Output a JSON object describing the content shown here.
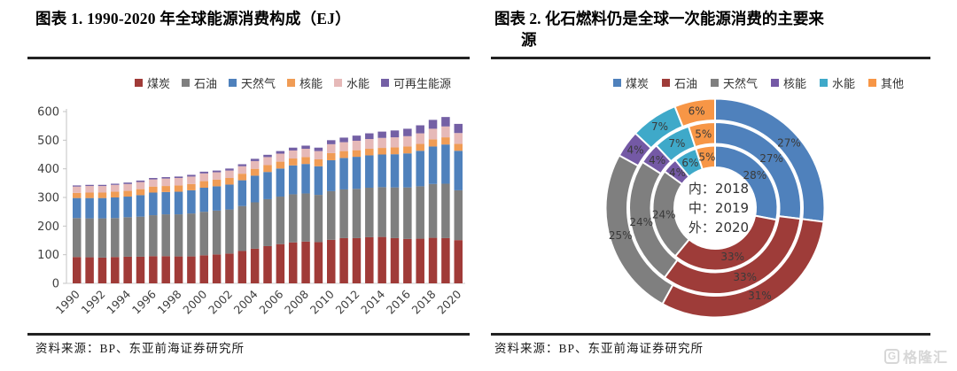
{
  "figure1": {
    "title": "图表 1.  1990-2020 年全球能源消费构成（EJ）",
    "source_label": "资料来源：BP、东亚前海证券研究所"
  },
  "figure2": {
    "title": "图表 2.  化石燃料仍是全球一次能源消费的主要来\n源",
    "source_label": "资料来源：BP、东亚前海证券研究所"
  },
  "watermark": {
    "icon": "gelonghui-g-icon",
    "icon_glyph": "G",
    "text": "格隆汇",
    "color": "#d7d7d7"
  },
  "chart_data": [
    {
      "type": "bar",
      "stacked": true,
      "title": "1990-2020 年全球能源消费构成（EJ）",
      "unit": "EJ",
      "ylim": [
        0,
        600
      ],
      "ytick_step": 100,
      "grid": false,
      "legend_position": "top",
      "x_label_rotation": -45,
      "x_tick_every": 2,
      "categories": [
        "1990",
        "1991",
        "1992",
        "1993",
        "1994",
        "1995",
        "1996",
        "1997",
        "1998",
        "1999",
        "2000",
        "2001",
        "2002",
        "2003",
        "2004",
        "2005",
        "2006",
        "2007",
        "2008",
        "2009",
        "2010",
        "2011",
        "2012",
        "2013",
        "2014",
        "2015",
        "2016",
        "2017",
        "2018",
        "2019",
        "2020"
      ],
      "series": [
        {
          "name": "煤炭",
          "color": "#A03B38",
          "values": [
            92,
            91,
            90,
            92,
            93,
            93,
            95,
            95,
            94,
            94,
            98,
            101,
            104,
            113,
            121,
            130,
            137,
            143,
            146,
            144,
            152,
            158,
            158,
            161,
            162,
            158,
            155,
            156,
            159,
            158,
            151
          ]
        },
        {
          "name": "石油",
          "color": "#7F7F7F",
          "values": [
            136,
            136,
            137,
            136,
            138,
            140,
            143,
            146,
            147,
            150,
            152,
            153,
            154,
            157,
            162,
            164,
            166,
            168,
            168,
            165,
            170,
            170,
            172,
            173,
            174,
            177,
            180,
            183,
            188,
            190,
            174
          ]
        },
        {
          "name": "天然气",
          "color": "#4F81BC",
          "values": [
            70,
            71,
            71,
            72,
            72,
            75,
            79,
            78,
            79,
            81,
            84,
            85,
            87,
            90,
            93,
            95,
            98,
            101,
            103,
            100,
            108,
            110,
            112,
            113,
            114,
            116,
            119,
            124,
            131,
            137,
            138
          ]
        },
        {
          "name": "核能",
          "color": "#F09C55",
          "values": [
            18,
            19,
            19,
            20,
            20,
            21,
            21,
            21,
            22,
            22,
            23,
            23,
            23,
            23,
            24,
            24,
            24,
            24,
            24,
            24,
            25,
            24,
            23,
            23,
            23,
            24,
            24,
            24,
            25,
            25,
            24
          ]
        },
        {
          "name": "水能",
          "color": "#E6B9B8",
          "values": [
            22,
            23,
            23,
            24,
            24,
            25,
            25,
            26,
            26,
            26,
            27,
            26,
            26,
            26,
            27,
            28,
            28,
            28,
            29,
            29,
            31,
            31,
            33,
            34,
            35,
            35,
            36,
            37,
            37,
            38,
            38
          ]
        },
        {
          "name": "可再生能源",
          "color": "#7460A5",
          "values": [
            4,
            4,
            4,
            4,
            5,
            5,
            5,
            5,
            5,
            6,
            6,
            6,
            7,
            7,
            8,
            8,
            9,
            10,
            11,
            12,
            14,
            16,
            18,
            20,
            22,
            24,
            26,
            28,
            31,
            33,
            32
          ]
        }
      ]
    },
    {
      "type": "pie",
      "subtype": "nested-donut",
      "title": "化石燃料仍是全球一次能源消费的主要来源",
      "legend_position": "top",
      "start_angle_deg": 0,
      "direction": "clockwise",
      "categories": [
        "煤炭",
        "石油",
        "天然气",
        "核能",
        "水能",
        "其他"
      ],
      "colors": [
        "#4F81BC",
        "#9E3C39",
        "#7F7F7F",
        "#7459A5",
        "#3FA9C9",
        "#F79646"
      ],
      "center_label_separator": "：",
      "rings": [
        {
          "position_label": "内",
          "year": "2018",
          "values_pct": [
            28,
            33,
            24,
            4,
            6,
            5
          ]
        },
        {
          "position_label": "中",
          "year": "2019",
          "values_pct": [
            27,
            33,
            24,
            4,
            7,
            5
          ]
        },
        {
          "position_label": "外",
          "year": "2020",
          "values_pct": [
            27,
            31,
            25,
            4,
            7,
            6
          ]
        }
      ]
    }
  ]
}
